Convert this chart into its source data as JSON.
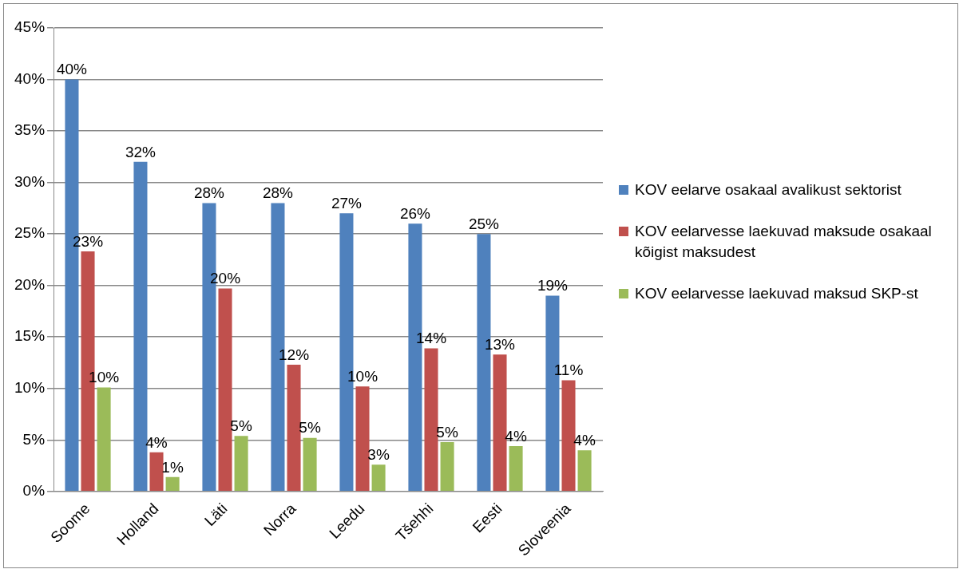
{
  "chart_data": {
    "type": "bar",
    "categories": [
      "Soome",
      "Holland",
      "Läti",
      "Norra",
      "Leedu",
      "Tšehhi",
      "Eesti",
      "Sloveenia"
    ],
    "series": [
      {
        "name": "KOV eelarve osakaal avalikust sektorist",
        "color": "#4f81bd",
        "values": [
          40,
          32,
          28,
          28,
          27,
          26,
          25,
          19
        ],
        "value_labels": [
          "40%",
          "32%",
          "28%",
          "28%",
          "27%",
          "26%",
          "25%",
          "19%"
        ]
      },
      {
        "name": "KOV eelarvesse laekuvad maksude osakaal kõigist maksudest",
        "color": "#c0504d",
        "values": [
          23.3,
          3.8,
          19.7,
          12.3,
          10.2,
          13.9,
          13.3,
          10.8
        ],
        "value_labels": [
          "23%",
          "4%",
          "20%",
          "12%",
          "10%",
          "14%",
          "13%",
          "11%"
        ]
      },
      {
        "name": "KOV eelarvesse laekuvad maksud SKP-st",
        "color": "#9bbb59",
        "values": [
          10.1,
          1.4,
          5.4,
          5.2,
          2.6,
          4.8,
          4.4,
          4.0
        ],
        "value_labels": [
          "10%",
          "1%",
          "5%",
          "5%",
          "3%",
          "5%",
          "4%",
          "4%"
        ]
      }
    ],
    "ylim": [
      0,
      45
    ],
    "yticks": [
      {
        "value": 0,
        "label": "0%"
      },
      {
        "value": 5,
        "label": "5%"
      },
      {
        "value": 10,
        "label": "10%"
      },
      {
        "value": 15,
        "label": "15%"
      },
      {
        "value": 20,
        "label": "20%"
      },
      {
        "value": 25,
        "label": "25%"
      },
      {
        "value": 30,
        "label": "30%"
      },
      {
        "value": 35,
        "label": "35%"
      },
      {
        "value": 40,
        "label": "40%"
      },
      {
        "value": 45,
        "label": "45%"
      }
    ],
    "grid": "y",
    "legend": "right"
  }
}
